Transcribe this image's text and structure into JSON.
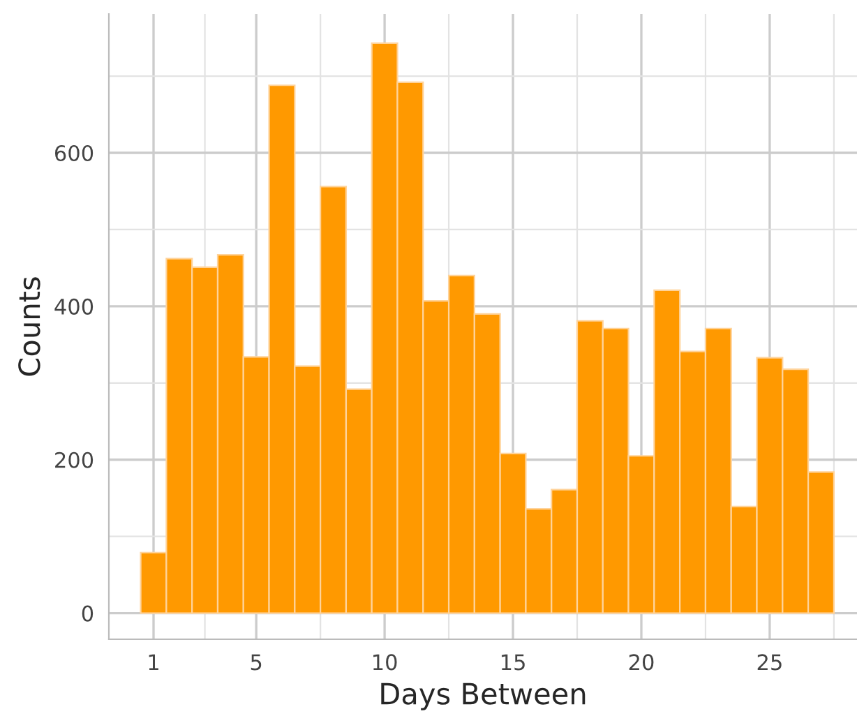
{
  "chart_data": {
    "type": "histogram",
    "xlabel": "Days Between",
    "ylabel": "Counts",
    "bins": [
      0.5,
      1.5,
      2.5,
      3.5,
      4.5,
      5.5,
      6.5,
      7.5,
      8.5,
      9.5,
      10.5,
      11.5,
      12.5,
      13.5,
      14.5,
      15.5,
      16.5,
      17.5,
      18.5,
      19.5,
      20.5,
      21.5,
      22.5,
      23.5,
      24.5,
      25.5,
      26.5,
      27.5
    ],
    "values": [
      79,
      462,
      451,
      467,
      334,
      688,
      322,
      556,
      292,
      743,
      692,
      407,
      440,
      390,
      208,
      136,
      161,
      381,
      371,
      205,
      421,
      341,
      371,
      139,
      333,
      318,
      184
    ],
    "color": "#ff9900",
    "xlim": [
      -0.74,
      28.4
    ],
    "xticks": [
      1,
      5,
      10,
      15,
      20,
      25
    ],
    "ylim": [
      -34,
      781
    ],
    "yticks": [
      0,
      200,
      400,
      600
    ],
    "grid": true
  }
}
